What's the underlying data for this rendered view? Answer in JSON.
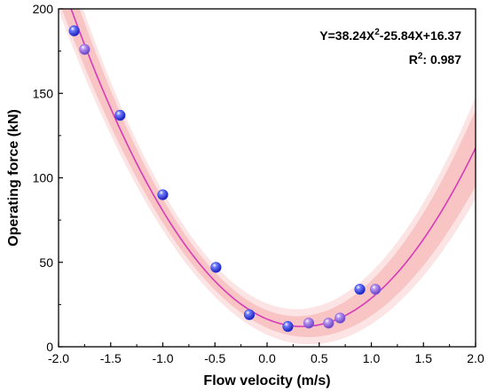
{
  "chart_data": {
    "type": "scatter",
    "title": "",
    "xlabel": "Flow velocity (m/s)",
    "ylabel": "Operating force (kN)",
    "xlim": [
      -2.0,
      2.0
    ],
    "ylim": [
      0,
      200
    ],
    "x_ticks": [
      "-2.0",
      "-1.5",
      "-1.0",
      "-0.5",
      "0.0",
      "0.5",
      "1.0",
      "1.5",
      "2.0"
    ],
    "y_ticks": [
      "0",
      "50",
      "100",
      "150",
      "200"
    ],
    "grid": false,
    "series": [
      {
        "x": [
          -1.85,
          -1.75,
          -1.41,
          -1.0,
          -0.49,
          -0.17,
          0.2,
          0.4,
          0.59,
          0.7,
          0.89,
          1.04
        ],
        "y": [
          187,
          176,
          137,
          90,
          47,
          19,
          12,
          14,
          14,
          17,
          34,
          34
        ],
        "colors": [
          "#2c3fe6",
          "#8a62dc",
          "#2c3fe6",
          "#2c3fe6",
          "#2c3fe6",
          "#2c3fe6",
          "#2c3fe6",
          "#8a62dc",
          "#8a62dc",
          "#8a62dc",
          "#2c3fe6",
          "#8a62dc"
        ]
      }
    ],
    "fit": {
      "equation_text": "Y=38.24X2-25.84X+16.37",
      "equation_parts": {
        "prefix": "Y=38.24X",
        "exponent": "2",
        "suffix": "-25.84X+16.37"
      },
      "coefficients": {
        "a": 38.24,
        "b": -25.84,
        "c": 16.37
      },
      "r2_text": "R2: 0.987",
      "r2_parts": {
        "prefix": "R",
        "exponent": "2",
        "suffix": ": 0.987"
      },
      "line_color": "#d63cb8",
      "confidence_band_color": "#f07a7a",
      "prediction_band_color": "#f9c4c4"
    }
  }
}
